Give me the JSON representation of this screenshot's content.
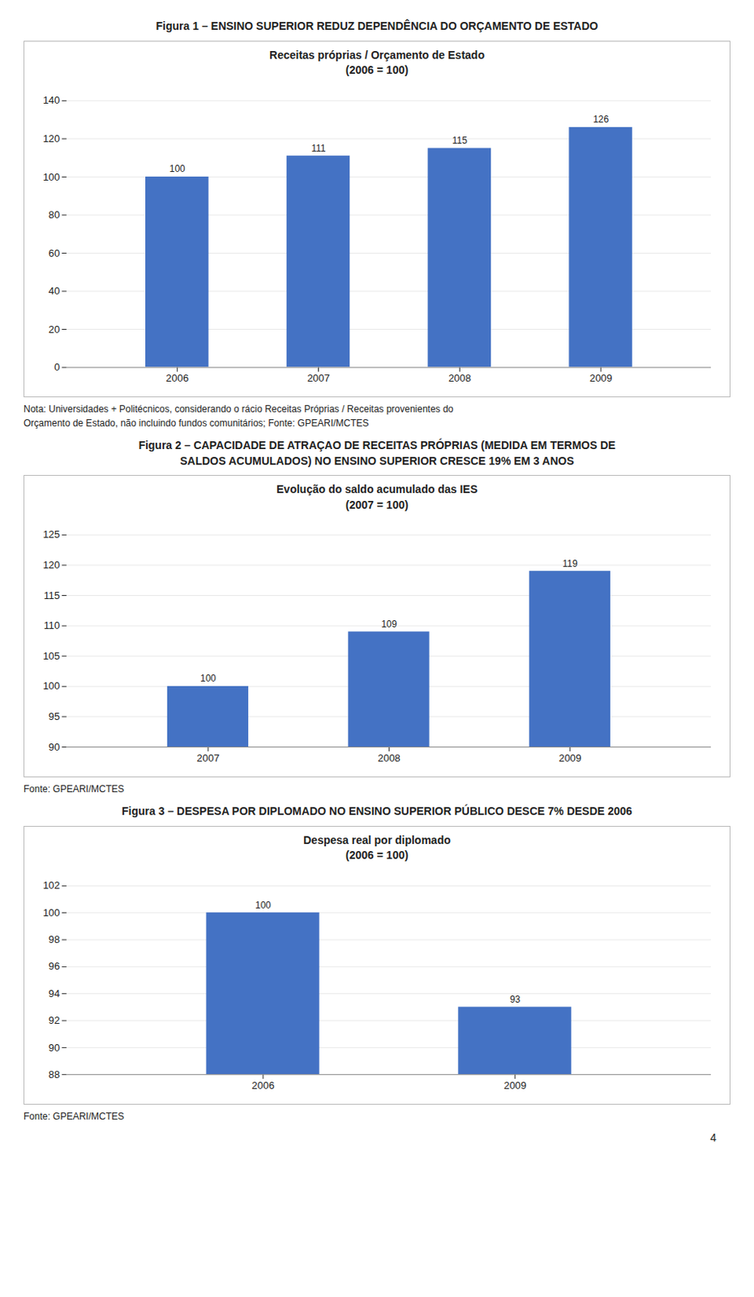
{
  "chart_data": [
    {
      "type": "bar",
      "title": "Figura 1 – ENSINO SUPERIOR REDUZ DEPENDÊNCIA DO ORÇAMENTO DE ESTADO",
      "subtitle": "Receitas próprias / Orçamento de Estado\n(2006 = 100)",
      "categories": [
        "2006",
        "2007",
        "2008",
        "2009"
      ],
      "values": [
        100,
        111,
        115,
        126
      ],
      "color": "#4472C4",
      "ylim": [
        0,
        140
      ],
      "yticks": [
        0,
        20,
        40,
        60,
        80,
        100,
        120,
        140
      ],
      "grid": true,
      "data_labels": true,
      "annotations": [
        "Nota: Universidades + Politécnicos, considerando o rácio Receitas Próprias / Receitas provenientes do\nOrçamento de Estado, não incluindo fundos comunitários; Fonte: GPEARI/MCTES"
      ]
    },
    {
      "type": "bar",
      "title": "Figura 2 – CAPACIDADE DE ATRAÇAO DE RECEITAS PRÓPRIAS (MEDIDA EM TERMOS DE\nSALDOS ACUMULADOS) NO ENSINO SUPERIOR CRESCE 19% EM 3 ANOS",
      "subtitle": "Evolução do saldo acumulado das IES\n(2007 = 100)",
      "categories": [
        "2007",
        "2008",
        "2009"
      ],
      "values": [
        100,
        109,
        119
      ],
      "color": "#4472C4",
      "ylim": [
        90,
        125
      ],
      "yticks": [
        90,
        95,
        100,
        105,
        110,
        115,
        120,
        125
      ],
      "grid": true,
      "data_labels": true,
      "annotations": [
        "Fonte: GPEARI/MCTES"
      ]
    },
    {
      "type": "bar",
      "title": "Figura 3 – DESPESA POR DIPLOMADO NO ENSINO SUPERIOR PÚBLICO DESCE 7% DESDE 2006",
      "subtitle": "Despesa real por diplomado\n(2006 = 100)",
      "categories": [
        "2006",
        "2009"
      ],
      "values": [
        100,
        93
      ],
      "color": "#4472C4",
      "ylim": [
        88,
        102
      ],
      "yticks": [
        88,
        90,
        92,
        94,
        96,
        98,
        100,
        102
      ],
      "grid": true,
      "data_labels": true,
      "annotations": [
        "Fonte: GPEARI/MCTES"
      ]
    }
  ],
  "page_number": "4"
}
